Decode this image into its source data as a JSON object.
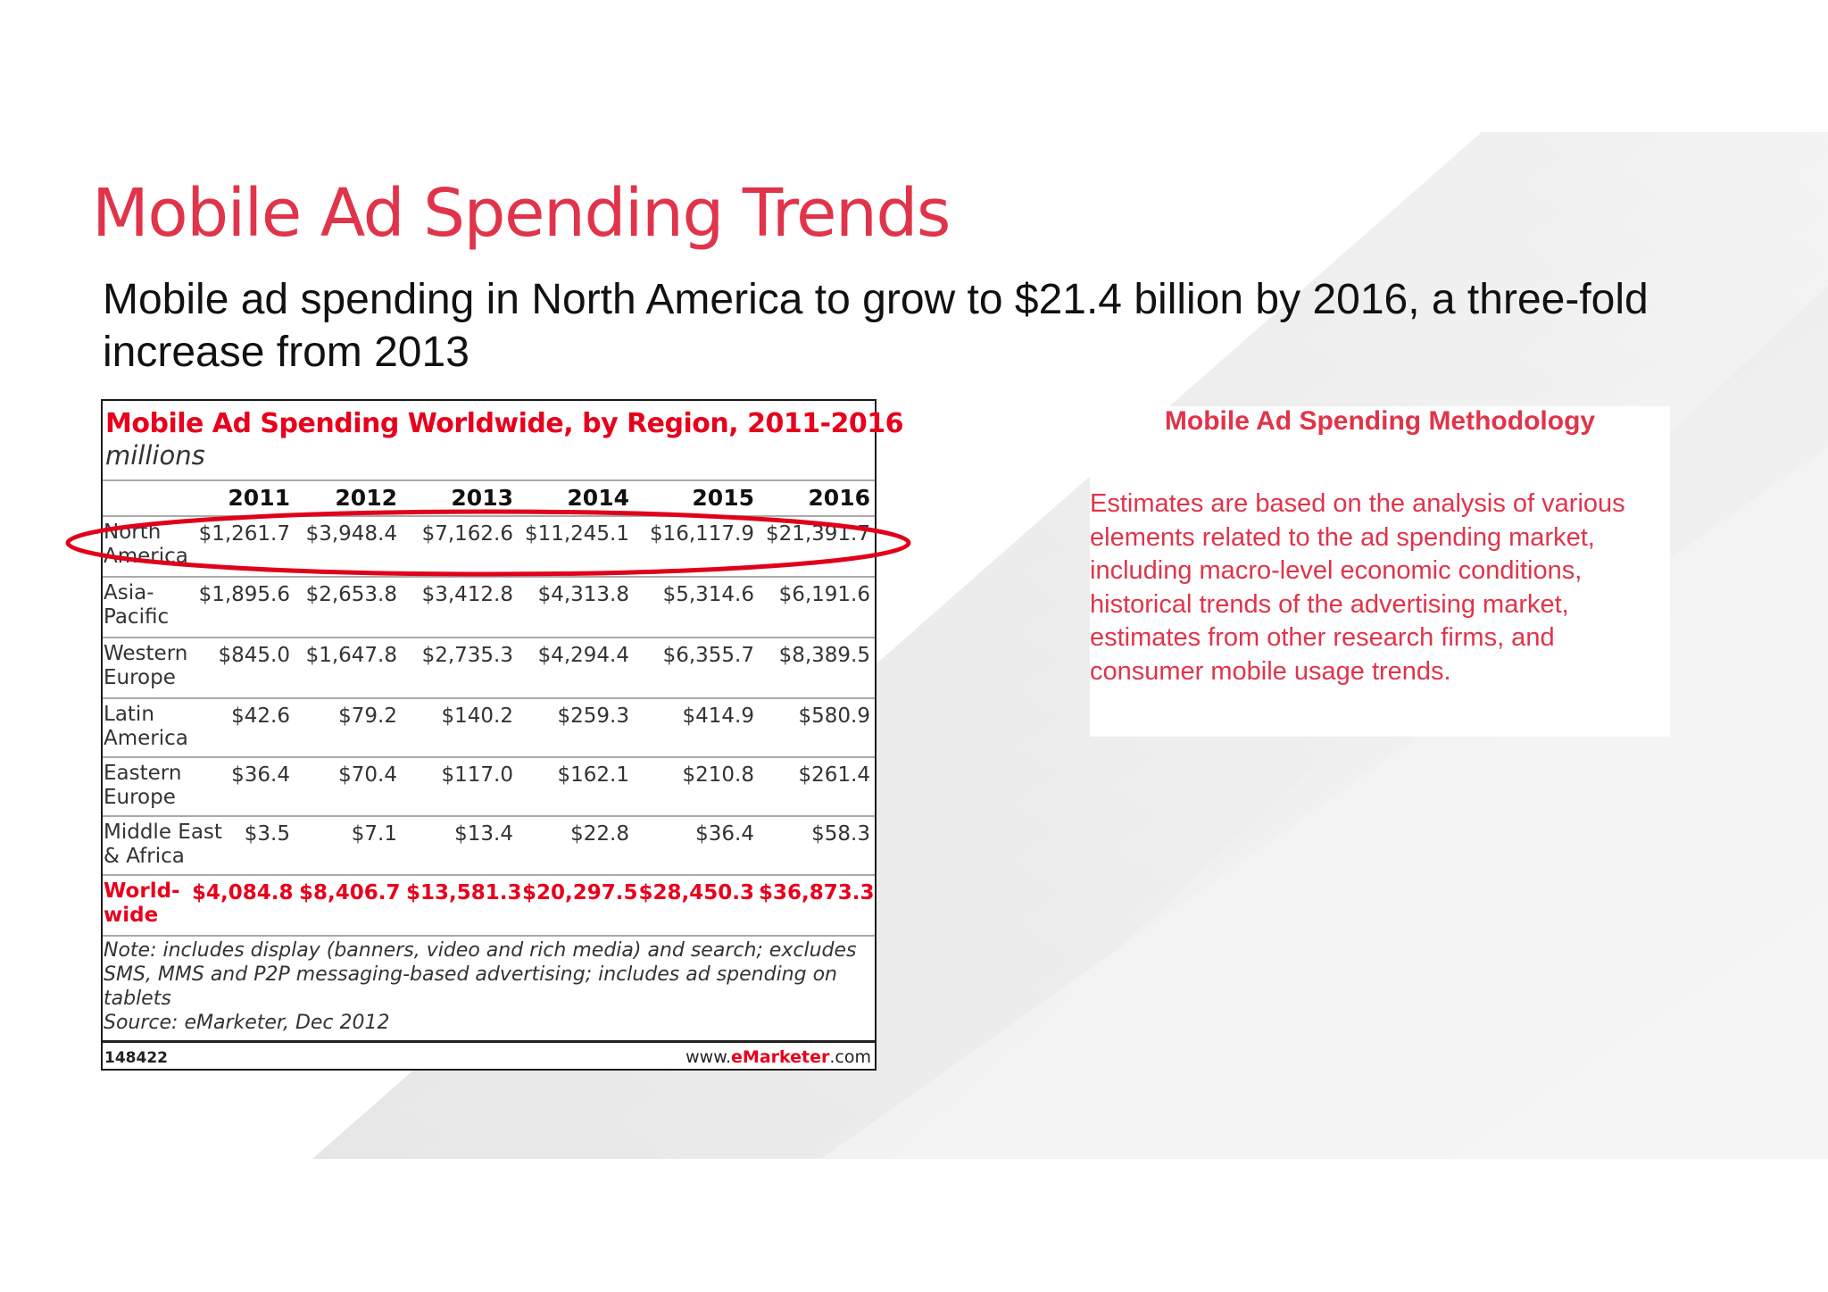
{
  "slide": {
    "title": "Mobile Ad Spending Trends",
    "subtitle": "Mobile ad spending in North America to grow to $21.4 billion by 2016, a three-fold increase from 2013"
  },
  "table": {
    "title": "Mobile Ad Spending Worldwide, by Region, 2011-2016",
    "units": "millions",
    "columns": [
      "2011",
      "2012",
      "2013",
      "2014",
      "2015",
      "2016"
    ],
    "rows": [
      {
        "label": "North America",
        "values": [
          "$1,261.7",
          "$3,948.4",
          "$7,162.6",
          "$11,245.1",
          "$16,117.9",
          "$21,391.7"
        ]
      },
      {
        "label": "Asia-Pacific",
        "values": [
          "$1,895.6",
          "$2,653.8",
          "$3,412.8",
          "$4,313.8",
          "$5,314.6",
          "$6,191.6"
        ]
      },
      {
        "label": "Western Europe",
        "values": [
          "$845.0",
          "$1,647.8",
          "$2,735.3",
          "$4,294.4",
          "$6,355.7",
          "$8,389.5"
        ]
      },
      {
        "label": "Latin America",
        "values": [
          "$42.6",
          "$79.2",
          "$140.2",
          "$259.3",
          "$414.9",
          "$580.9"
        ]
      },
      {
        "label": "Eastern Europe",
        "values": [
          "$36.4",
          "$70.4",
          "$117.0",
          "$162.1",
          "$210.8",
          "$261.4"
        ]
      },
      {
        "label": "Middle East & Africa",
        "values": [
          "$3.5",
          "$7.1",
          "$13.4",
          "$22.8",
          "$36.4",
          "$58.3"
        ]
      }
    ],
    "total": {
      "label": "World-wide",
      "values": [
        "$4,084.8",
        "$8,406.7",
        "$13,581.3",
        "$20,297.5",
        "$28,450.3",
        "$36,873.3"
      ]
    },
    "note": "Note: includes display (banners, video and rich media) and search; excludes SMS, MMS and P2P messaging-based advertising; includes ad spending on tablets",
    "source": "Source: eMarketer, Dec 2012",
    "id": "148422",
    "site_prefix": "www.",
    "site_brand": "eMarketer",
    "site_suffix": ".com"
  },
  "methodology": {
    "title": "Mobile Ad Spending Methodology",
    "body": "Estimates are based on the analysis of various elements related to the ad spending market, including macro-level economic conditions, historical trends of the advertising market, estimates from other research firms, and consumer mobile usage trends."
  },
  "colors": {
    "accent": "#e0344a",
    "table_red": "#e8001c",
    "highlight": "#e0001a"
  }
}
